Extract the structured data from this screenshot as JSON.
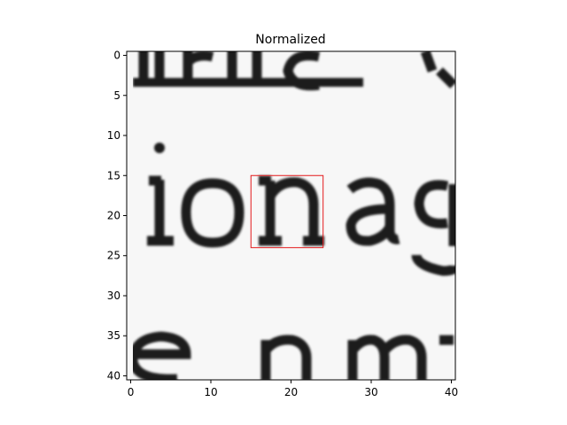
{
  "chart_data": {
    "type": "heatmap",
    "title": "Normalized",
    "colormap": "gray",
    "image_shape": [
      41,
      41
    ],
    "xlim": [
      -0.5,
      40.5
    ],
    "ylim": [
      40.5,
      -0.5
    ],
    "xticks": [
      0,
      10,
      20,
      30,
      40
    ],
    "yticks": [
      0,
      5,
      10,
      15,
      20,
      25,
      30,
      35,
      40
    ],
    "xtick_labels": [
      "0",
      "10",
      "20",
      "30",
      "40"
    ],
    "ytick_labels": [
      "0",
      "5",
      "10",
      "15",
      "20",
      "25",
      "30",
      "35",
      "40"
    ],
    "image_content": {
      "middle_row_text": "ionag",
      "top_row_text": "urc",
      "bottom_row_text": "enm"
    },
    "highlight_rectangle": {
      "x_range": [
        15,
        24
      ],
      "y_range": [
        15,
        24
      ],
      "color": "#e41a1c"
    },
    "grid": false,
    "legend": "none"
  },
  "colors": {
    "background": "#f7f7f7",
    "ink": "#1a1a1a",
    "highlight": "#e41a1c"
  }
}
